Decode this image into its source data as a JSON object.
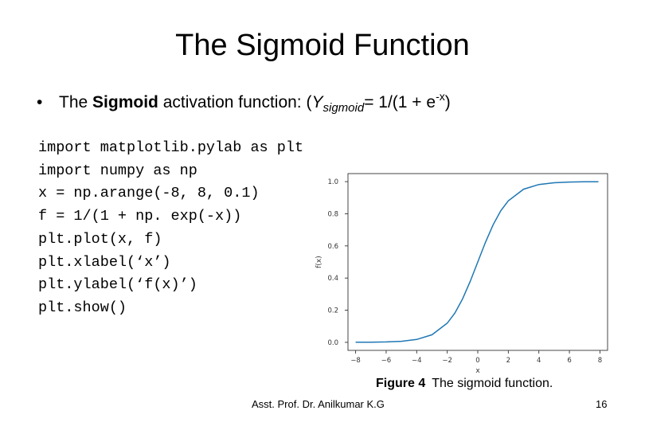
{
  "slide": {
    "title": "The Sigmoid Function",
    "bullet": {
      "symbol": "•",
      "prefix": "The ",
      "bold_word": "Sigmoid",
      "middle": " activation function: (",
      "y_var": "Y",
      "y_sub": "sigmoid",
      "formula": "= 1/(1 + e",
      "exponent": "-x",
      "close": ")"
    },
    "code_lines": [
      "import matplotlib.pylab as plt",
      "import numpy as np",
      "x = np.arange(-8, 8, 0.1)",
      "f = 1/(1 + np. exp(-x))",
      "plt.plot(x, f)",
      "plt.xlabel(‘x’)",
      "plt.ylabel(‘f(x)’)",
      "plt.show()"
    ],
    "caption": {
      "label": "Figure 4",
      "text": "The sigmoid function."
    },
    "footer": "Asst. Prof. Dr. Anilkumar K.G",
    "page_number": "16"
  },
  "chart_data": {
    "type": "line",
    "title": "",
    "xlabel": "x",
    "ylabel": "f(x)",
    "xlim": [
      -8.5,
      8.5
    ],
    "ylim": [
      -0.05,
      1.05
    ],
    "x_ticks": [
      -8,
      -6,
      -4,
      -2,
      0,
      2,
      4,
      6,
      8
    ],
    "y_ticks": [
      0.0,
      0.2,
      0.4,
      0.6,
      0.8,
      1.0
    ],
    "series": [
      {
        "color": "#1f77b4",
        "x": [
          -8,
          -7,
          -6,
          -5,
          -4,
          -3,
          -2,
          -1.5,
          -1,
          -0.5,
          0,
          0.5,
          1,
          1.5,
          2,
          3,
          4,
          5,
          6,
          7,
          7.9
        ],
        "y": [
          0.0003,
          0.0009,
          0.0025,
          0.0067,
          0.018,
          0.047,
          0.119,
          0.182,
          0.269,
          0.378,
          0.5,
          0.622,
          0.731,
          0.818,
          0.881,
          0.953,
          0.982,
          0.993,
          0.9975,
          0.9991,
          0.9996
        ]
      }
    ],
    "grid": false,
    "legend": "none"
  }
}
